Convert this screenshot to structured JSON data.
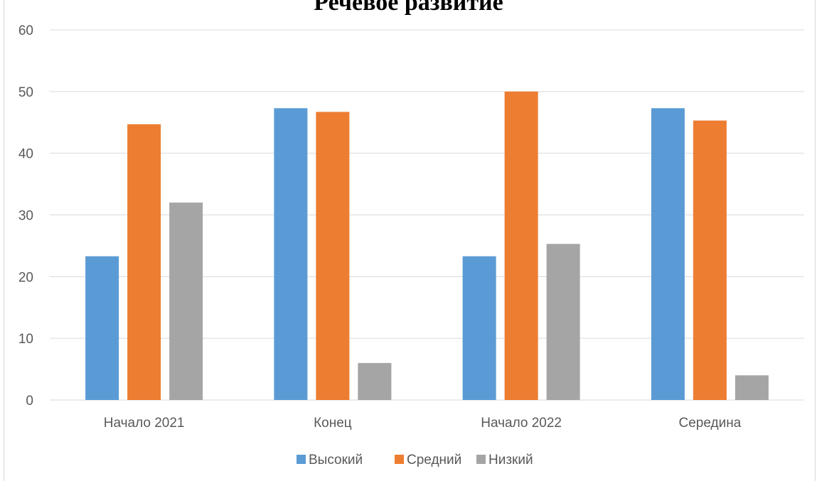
{
  "chart_data": {
    "type": "bar",
    "title": "Речевое развитие",
    "categories": [
      "Начало 2021",
      "Конец",
      "Начало 2022",
      "Середина"
    ],
    "series": [
      {
        "name": "Высокий",
        "color": "#5b9bd5",
        "values": [
          23.3,
          47.3,
          23.3,
          47.3
        ]
      },
      {
        "name": "Средний",
        "color": "#ed7d31",
        "values": [
          44.7,
          46.7,
          50.0,
          45.3
        ]
      },
      {
        "name": "Низкий",
        "color": "#a5a5a5",
        "values": [
          32.0,
          6.0,
          25.3,
          4.0
        ]
      }
    ],
    "ylim": [
      0,
      60
    ],
    "yticks": [
      0,
      10,
      20,
      30,
      40,
      50,
      60
    ],
    "grid": true,
    "legend_position": "bottom"
  }
}
